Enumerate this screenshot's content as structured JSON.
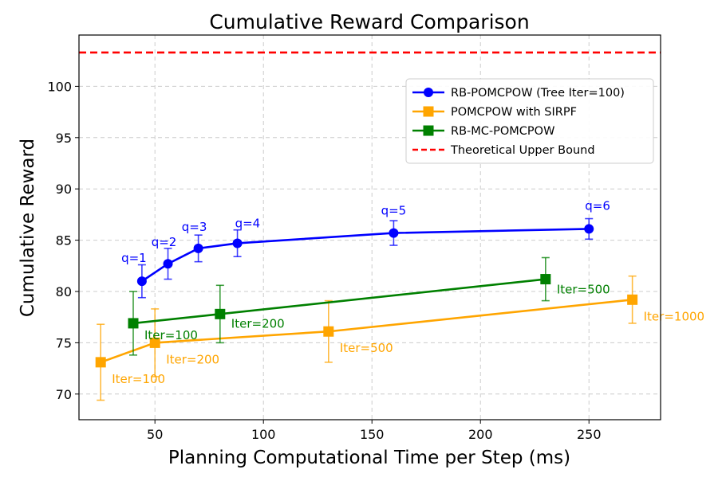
{
  "chart_data": {
    "type": "line",
    "title": "Cumulative Reward Comparison",
    "xlabel": "Planning Computational Time per Step (ms)",
    "ylabel": "Cumulative Reward",
    "xlim": [
      15,
      283
    ],
    "ylim": [
      67.5,
      105
    ],
    "xticks": [
      50,
      100,
      150,
      200,
      250
    ],
    "yticks": [
      70,
      75,
      80,
      85,
      90,
      95,
      100
    ],
    "grid": true,
    "legend_position": "upper-right",
    "series": [
      {
        "name": "RB-POMCPOW (Tree Iter=100)",
        "color": "#0000ff",
        "marker": "circle",
        "x": [
          44,
          56,
          70,
          88,
          160,
          250
        ],
        "y": [
          81.0,
          82.7,
          84.2,
          84.7,
          85.7,
          86.1
        ],
        "yerr": [
          1.6,
          1.5,
          1.3,
          1.3,
          1.2,
          1.0
        ],
        "labels": [
          "q=1",
          "q=2",
          "q=3",
          "q=4",
          "q=5",
          "q=6"
        ]
      },
      {
        "name": "POMCPOW with SIRPF",
        "color": "#ffa500",
        "marker": "square",
        "x": [
          25,
          50,
          130,
          270
        ],
        "y": [
          73.1,
          75.0,
          76.1,
          79.2
        ],
        "yerr": [
          3.7,
          3.3,
          3.0,
          2.3
        ],
        "labels": [
          "Iter=100",
          "Iter=200",
          "Iter=500",
          "Iter=1000"
        ]
      },
      {
        "name": "RB-MC-POMCPOW",
        "color": "#008000",
        "marker": "square",
        "x": [
          40,
          80,
          230
        ],
        "y": [
          76.9,
          77.8,
          81.2
        ],
        "yerr": [
          3.1,
          2.8,
          2.1
        ],
        "labels": [
          "Iter=100",
          "Iter=200",
          "Iter=500"
        ]
      }
    ],
    "reference_lines": [
      {
        "name": "Theoretical Upper Bound",
        "color": "#ff0000",
        "style": "dashed",
        "y": 103.3
      }
    ]
  }
}
